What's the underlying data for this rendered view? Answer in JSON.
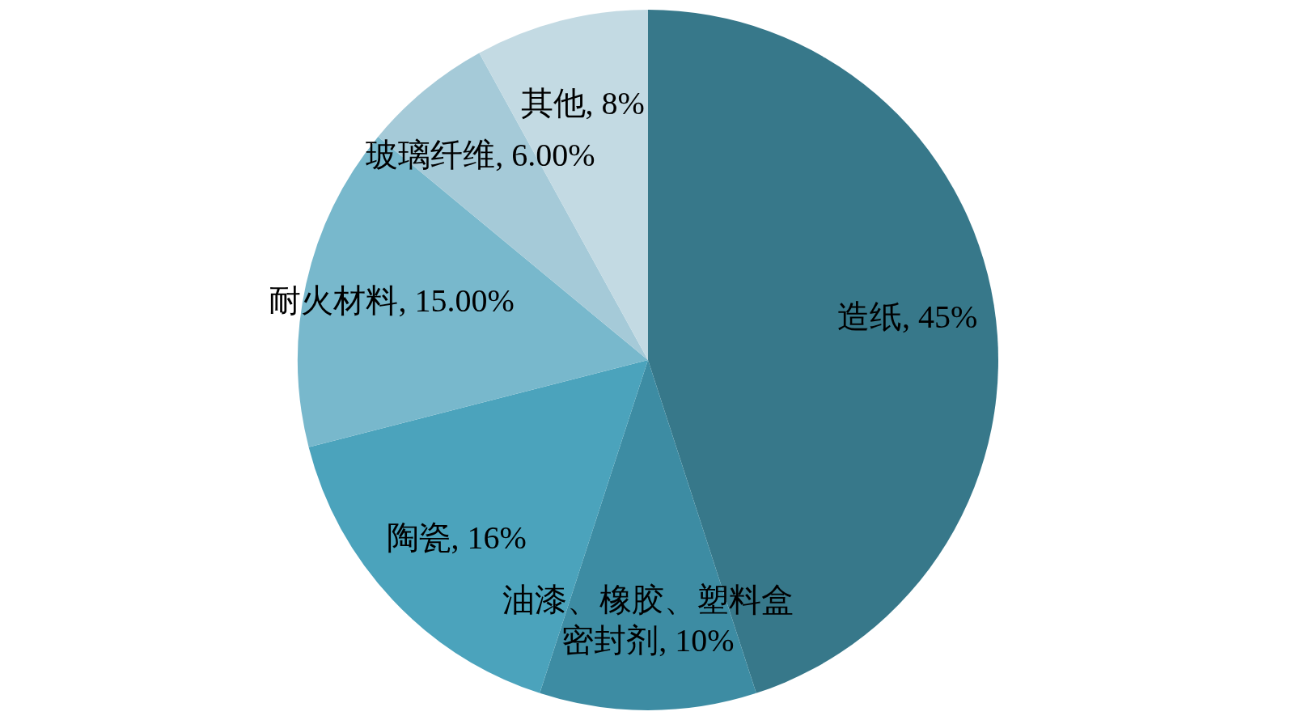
{
  "chart_data": {
    "type": "pie",
    "categories": [
      "造纸",
      "油漆、橡胶、塑料盒密封剂",
      "陶瓷",
      "耐火材料",
      "玻璃纤维",
      "其他"
    ],
    "values": [
      45,
      10,
      16,
      15,
      6,
      8
    ],
    "value_labels": [
      "45%",
      "10%",
      "16%",
      "15.00%",
      "6.00%",
      "8%"
    ],
    "colors": [
      "#37788a",
      "#3d8ca3",
      "#4ba3bc",
      "#78b8cc",
      "#a5cad8",
      "#c3dae3"
    ],
    "legend": false
  }
}
